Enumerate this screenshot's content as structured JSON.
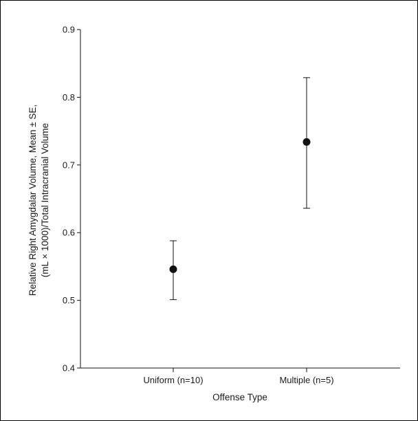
{
  "chart_data": {
    "type": "scatter",
    "title": "",
    "xlabel": "Offense Type",
    "ylabel_lines": [
      "Relative Right Amygdalar Volume, Mean ± SE,",
      "(mL × 1000)/Total Intracranial Volume"
    ],
    "categories": [
      "Uniform (n=10)",
      "Multiple (n=5)"
    ],
    "ylim": [
      0.4,
      0.9
    ],
    "yticks": [
      0.4,
      0.5,
      0.6,
      0.7,
      0.8,
      0.9
    ],
    "ytick_labels": [
      "0.4",
      "0.5",
      "0.6",
      "0.7",
      "0.8",
      "0.9"
    ],
    "points": [
      {
        "category": "Uniform (n=10)",
        "mean": 0.546,
        "lower": 0.501,
        "upper": 0.588
      },
      {
        "category": "Multiple (n=5)",
        "mean": 0.734,
        "lower": 0.636,
        "upper": 0.829
      }
    ],
    "grid": false,
    "legend": "none",
    "colors": {
      "marker": "#111111",
      "axis": "#111111"
    }
  }
}
